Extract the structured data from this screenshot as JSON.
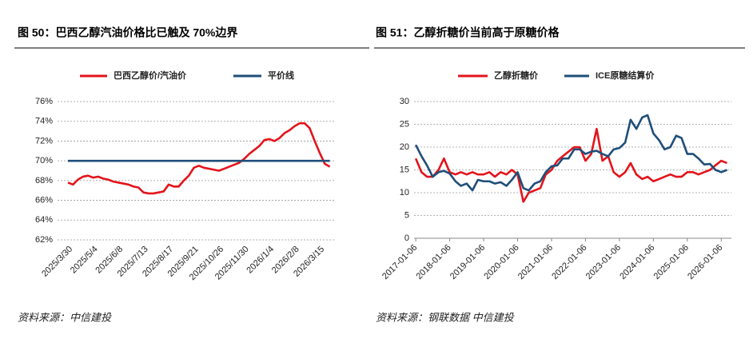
{
  "chart_data": [
    {
      "type": "line",
      "title": "图 50：巴西乙醇汽油价格比已触及 70%边界",
      "source": "资料来源：中信建投",
      "categories": [
        "2025/3/30",
        null,
        null,
        null,
        null,
        "2025/5/4",
        null,
        null,
        null,
        null,
        "2025/6/8",
        null,
        null,
        null,
        null,
        "2025/7/13",
        null,
        null,
        null,
        null,
        "2025/8/17",
        null,
        null,
        null,
        null,
        "2025/9/21",
        null,
        null,
        null,
        null,
        "2025/10/26",
        null,
        null,
        null,
        null,
        "2025/11/30",
        null,
        null,
        null,
        null,
        "2026/1/4",
        null,
        null,
        null,
        null,
        "2026/2/8",
        null,
        null,
        null,
        null,
        "2026/3/15",
        null,
        null
      ],
      "series": [
        {
          "name": "巴西乙醇价/汽油价",
          "color": "#e3141b",
          "values": [
            67.8,
            67.6,
            68.1,
            68.4,
            68.5,
            68.3,
            68.4,
            68.2,
            68.1,
            67.9,
            67.8,
            67.7,
            67.6,
            67.4,
            67.3,
            66.8,
            66.7,
            66.7,
            66.8,
            66.9,
            67.6,
            67.4,
            67.4,
            68.0,
            68.5,
            69.3,
            69.5,
            69.3,
            69.2,
            69.1,
            69.0,
            69.2,
            69.4,
            69.6,
            69.8,
            70.2,
            70.7,
            71.1,
            71.5,
            72.1,
            72.2,
            72.0,
            72.3,
            72.8,
            73.1,
            73.5,
            73.8,
            73.8,
            73.3,
            72.0,
            70.8,
            69.7,
            69.4
          ]
        },
        {
          "name": "平价线",
          "color": "#1f4e79",
          "values": [
            70,
            70,
            70,
            70,
            70,
            70,
            70,
            70,
            70,
            70,
            70,
            70,
            70,
            70,
            70,
            70,
            70,
            70,
            70,
            70,
            70,
            70,
            70,
            70,
            70,
            70,
            70,
            70,
            70,
            70,
            70,
            70,
            70,
            70,
            70,
            70,
            70,
            70,
            70,
            70,
            70,
            70,
            70,
            70,
            70,
            70,
            70,
            70,
            70,
            70,
            70,
            70,
            70
          ]
        }
      ],
      "ylim": [
        62,
        76
      ],
      "yticks": [
        {
          "value": 62,
          "label": "62%"
        },
        {
          "value": 64,
          "label": "64%"
        },
        {
          "value": 66,
          "label": "66%"
        },
        {
          "value": 68,
          "label": "68%"
        },
        {
          "value": 70,
          "label": "70%"
        },
        {
          "value": 72,
          "label": "72%"
        },
        {
          "value": 74,
          "label": "74%"
        },
        {
          "value": 76,
          "label": "76%"
        }
      ],
      "grid": true,
      "legend": "top"
    },
    {
      "type": "line",
      "title": "图 51：乙醇折糖价当前高于原糖价格",
      "source": "资料来源：钢联数据  中信建投",
      "x": [
        2017.0,
        2017.17,
        2017.33,
        2017.5,
        2017.67,
        2017.83,
        2018.0,
        2018.17,
        2018.33,
        2018.5,
        2018.67,
        2018.83,
        2019.0,
        2019.17,
        2019.33,
        2019.5,
        2019.67,
        2019.83,
        2020.0,
        2020.17,
        2020.33,
        2020.5,
        2020.67,
        2020.83,
        2021.0,
        2021.17,
        2021.33,
        2021.5,
        2021.67,
        2021.83,
        2022.0,
        2022.17,
        2022.33,
        2022.5,
        2022.67,
        2022.83,
        2023.0,
        2023.17,
        2023.33,
        2023.5,
        2023.67,
        2023.83,
        2024.0,
        2024.17,
        2024.33,
        2024.5,
        2024.67,
        2024.83,
        2025.0,
        2025.17,
        2025.33,
        2025.5,
        2025.67,
        2025.83,
        2026.0,
        2026.17
      ],
      "series": [
        {
          "name": "乙醇折糖价",
          "color": "#e3141b",
          "values": [
            17.5,
            14.5,
            13.5,
            13.5,
            15,
            17.5,
            14.5,
            14,
            14.5,
            14,
            14.5,
            14,
            14,
            14.5,
            13.5,
            14.5,
            14,
            15,
            14,
            8,
            10,
            10.5,
            11,
            14,
            15,
            17,
            18,
            19,
            20,
            20,
            17,
            18.5,
            24,
            17,
            18,
            14.5,
            13.5,
            14.5,
            16.5,
            14,
            13,
            13.5,
            12.5,
            13,
            13.5,
            14,
            13.5,
            13.5,
            14.5,
            14.5,
            14,
            14.5,
            15,
            16,
            17,
            16.5
          ]
        },
        {
          "name": "ICE原糖结算价",
          "color": "#1f4e79",
          "values": [
            20.5,
            18,
            16,
            13.5,
            14.5,
            14.8,
            14.2,
            12.5,
            11.5,
            12,
            10.5,
            12.8,
            12.5,
            12.5,
            12,
            12.3,
            11.5,
            12.8,
            14.5,
            11,
            10.5,
            12,
            12.5,
            14.5,
            15.8,
            16,
            17.5,
            17.5,
            19.5,
            19.5,
            18.5,
            19,
            19.2,
            18.5,
            18,
            19.5,
            19.8,
            21,
            26,
            24,
            26.5,
            27,
            23,
            21.5,
            19.5,
            20,
            22.5,
            22,
            18.5,
            18.5,
            17.5,
            16.2,
            16.3,
            15,
            14.5,
            15
          ]
        }
      ],
      "xlim": [
        2016.95,
        2026.3
      ],
      "xticks": [
        {
          "value": 2017.0,
          "label": "2017-01-06"
        },
        {
          "value": 2018.0,
          "label": "2018-01-06"
        },
        {
          "value": 2019.0,
          "label": "2019-01-06"
        },
        {
          "value": 2020.0,
          "label": "2020-01-06"
        },
        {
          "value": 2021.0,
          "label": "2021-01-06"
        },
        {
          "value": 2022.0,
          "label": "2022-01-06"
        },
        {
          "value": 2023.0,
          "label": "2023-01-06"
        },
        {
          "value": 2024.0,
          "label": "2024-01-06"
        },
        {
          "value": 2025.0,
          "label": "2025-01-06"
        },
        {
          "value": 2026.0,
          "label": "2026-01-06"
        }
      ],
      "ylim": [
        0,
        30
      ],
      "yticks": [
        0,
        5,
        10,
        15,
        20,
        25,
        30
      ],
      "grid": true,
      "legend": "top"
    }
  ]
}
